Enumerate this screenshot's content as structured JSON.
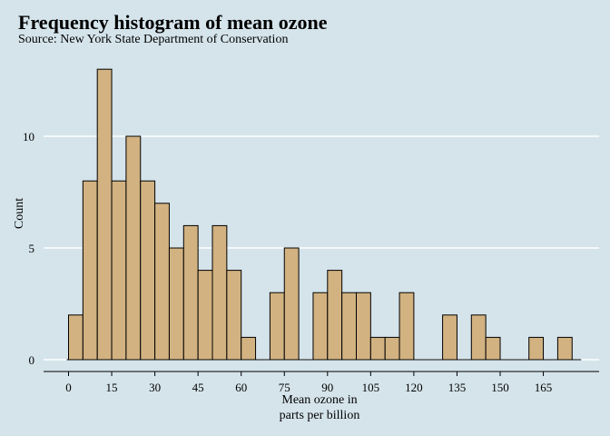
{
  "chart_data": {
    "type": "bar",
    "title": "Frequency histogram of mean ozone",
    "subtitle": "Source: New York State Department of Conservation",
    "xlabel_line1": "Mean ozone in",
    "xlabel_line2": "parts per billion",
    "ylabel": "Count",
    "bin_width": 5,
    "bin_starts": [
      0,
      5,
      10,
      15,
      20,
      25,
      30,
      35,
      40,
      45,
      50,
      55,
      60,
      65,
      70,
      75,
      80,
      85,
      90,
      95,
      100,
      105,
      110,
      115,
      120,
      125,
      130,
      135,
      140,
      145,
      150,
      155,
      160,
      165,
      170
    ],
    "values": [
      2,
      8,
      13,
      8,
      10,
      8,
      7,
      5,
      6,
      4,
      6,
      4,
      1,
      0,
      3,
      5,
      0,
      3,
      4,
      3,
      3,
      1,
      1,
      3,
      0,
      0,
      2,
      0,
      2,
      1,
      0,
      0,
      1,
      0,
      1
    ],
    "x_range": [
      -10,
      190
    ],
    "ylim": [
      0,
      13.5
    ],
    "xticks": [
      0,
      15,
      30,
      45,
      60,
      75,
      90,
      105,
      120,
      135,
      150,
      165
    ],
    "yticks": [
      0,
      5,
      10
    ],
    "grid": "horizontal",
    "colors": {
      "background": "#d5e4eb",
      "bar_fill": "#d2b281",
      "bar_stroke": "#000000",
      "grid": "#ffffff"
    }
  }
}
